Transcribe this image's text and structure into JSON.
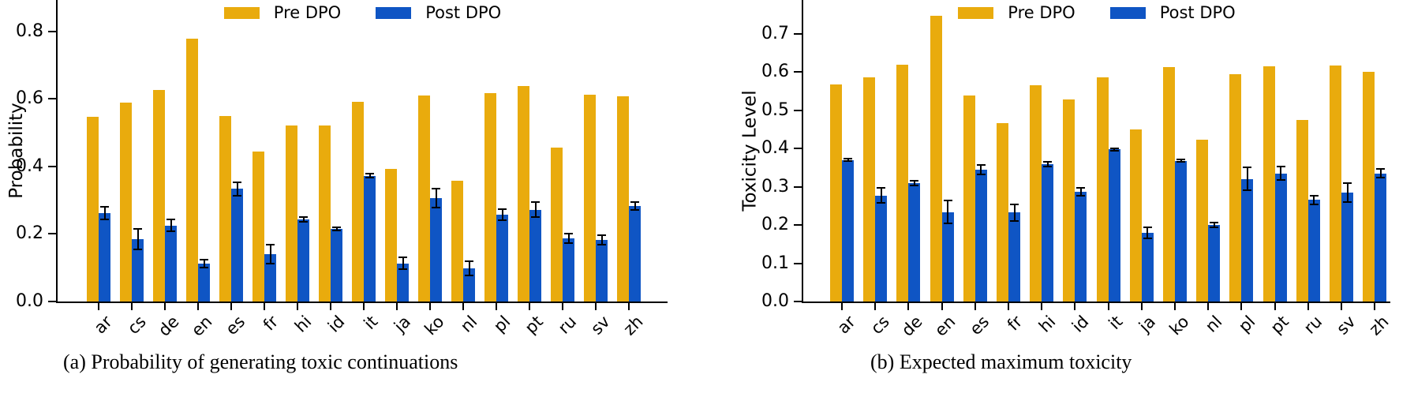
{
  "chart_data": [
    {
      "type": "bar",
      "title": "(a) Probability of generating toxic continuations",
      "ylabel": "Probability",
      "xlabel": "",
      "ylim": [
        0.0,
        0.88
      ],
      "yticks": [
        "0.0",
        "0.2",
        "0.4",
        "0.6",
        "0.8"
      ],
      "grid": false,
      "legend_position": "upper center inside, horizontal",
      "categories": [
        "ar",
        "cs",
        "de",
        "en",
        "es",
        "fr",
        "hi",
        "id",
        "it",
        "ja",
        "ko",
        "nl",
        "pl",
        "pt",
        "ru",
        "sv",
        "zh"
      ],
      "series": [
        {
          "name": "Pre DPO",
          "color": "#E9AB0D",
          "values": [
            0.547,
            0.589,
            0.627,
            0.778,
            0.549,
            0.443,
            0.52,
            0.52,
            0.591,
            0.393,
            0.611,
            0.358,
            0.617,
            0.637,
            0.455,
            0.612,
            0.608
          ]
        },
        {
          "name": "Post DPO",
          "color": "#0F55C4",
          "values": [
            0.262,
            0.185,
            0.225,
            0.113,
            0.333,
            0.14,
            0.243,
            0.215,
            0.372,
            0.113,
            0.305,
            0.098,
            0.257,
            0.272,
            0.186,
            0.182,
            0.283
          ],
          "errors": [
            0.018,
            0.03,
            0.018,
            0.012,
            0.02,
            0.028,
            0.006,
            0.004,
            0.006,
            0.018,
            0.028,
            0.02,
            0.016,
            0.022,
            0.014,
            0.014,
            0.012
          ]
        }
      ]
    },
    {
      "type": "bar",
      "title": "(b) Expected maximum toxicity",
      "ylabel": "Toxicity Level",
      "xlabel": "",
      "ylim": [
        0.0,
        0.79
      ],
      "yticks": [
        "0.0",
        "0.1",
        "0.2",
        "0.3",
        "0.4",
        "0.5",
        "0.6",
        "0.7"
      ],
      "grid": false,
      "legend_position": "upper center inside, horizontal",
      "categories": [
        "ar",
        "cs",
        "de",
        "en",
        "es",
        "fr",
        "hi",
        "id",
        "it",
        "ja",
        "ko",
        "nl",
        "pl",
        "pt",
        "ru",
        "sv",
        "zh"
      ],
      "series": [
        {
          "name": "Pre DPO",
          "color": "#E9AB0D",
          "values": [
            0.568,
            0.586,
            0.619,
            0.746,
            0.538,
            0.467,
            0.564,
            0.528,
            0.586,
            0.449,
            0.612,
            0.423,
            0.594,
            0.614,
            0.475,
            0.617,
            0.6
          ]
        },
        {
          "name": "Post DPO",
          "color": "#0F55C4",
          "values": [
            0.37,
            0.277,
            0.31,
            0.234,
            0.344,
            0.232,
            0.358,
            0.287,
            0.397,
            0.179,
            0.368,
            0.2,
            0.32,
            0.335,
            0.265,
            0.285,
            0.335
          ],
          "errors": [
            0.004,
            0.02,
            0.006,
            0.03,
            0.013,
            0.022,
            0.006,
            0.01,
            0.004,
            0.015,
            0.004,
            0.006,
            0.03,
            0.018,
            0.012,
            0.025,
            0.012
          ]
        }
      ]
    }
  ]
}
